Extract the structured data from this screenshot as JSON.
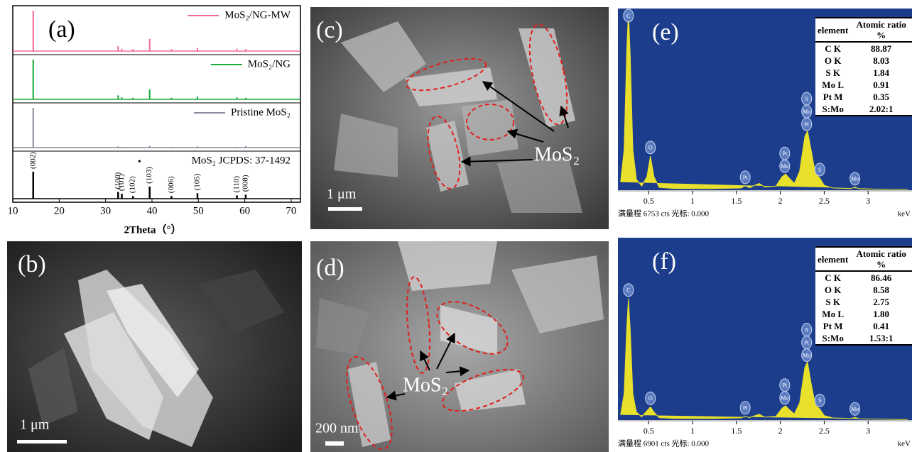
{
  "chart_data": [
    {
      "type": "line",
      "title": "(a)",
      "xlabel": "2Theta（°）",
      "xlim": [
        10,
        72
      ],
      "xticks": [
        10,
        20,
        30,
        40,
        50,
        60,
        70
      ],
      "ylim": [
        0,
        100
      ],
      "x": [
        14.4,
        32.7,
        33.5,
        35.9,
        39.5,
        44.2,
        49.8,
        58.3,
        60.2
      ],
      "series": [
        {
          "name": "MoS₂/NG-MW",
          "color": "#f06aa0",
          "values": [
            100,
            12,
            6,
            5,
            30,
            5,
            8,
            6,
            5
          ]
        },
        {
          "name": "MoS₂/NG",
          "color": "#1aa83a",
          "values": [
            100,
            10,
            5,
            4,
            25,
            4,
            7,
            5,
            4
          ]
        },
        {
          "name": "Pristine MoS₂",
          "color": "#8a8a9a",
          "values": [
            100,
            3,
            2,
            1,
            4,
            2,
            3,
            2,
            4
          ]
        },
        {
          "name": "MoS₂ JCPDS: 37-1492",
          "color": "#000000",
          "values": [
            100,
            25,
            18,
            10,
            45,
            10,
            20,
            12,
            15
          ],
          "labels": [
            "(002)",
            "(100)",
            "(101)",
            "(102)",
            "(103)",
            "(006)",
            "(105)",
            "(110)",
            "(008)"
          ]
        }
      ],
      "annotations": [
        {
          "text": "•",
          "x": 37.3
        }
      ]
    },
    {
      "type": "area",
      "title": "(e)",
      "xlabel": "keV",
      "footer": "满量程 6753 cts 光标: 0.000",
      "xlim": [
        0.15,
        3.5
      ],
      "ylim": [
        0,
        6753
      ],
      "xticks": [
        0.5,
        1,
        1.5,
        2,
        2.5,
        3
      ],
      "color": "#e8e02a",
      "background": "#1c3d8c",
      "x": [
        0.18,
        0.22,
        0.25,
        0.27,
        0.29,
        0.32,
        0.36,
        0.42,
        0.48,
        0.52,
        0.56,
        0.62,
        0.8,
        1.2,
        1.55,
        1.6,
        1.65,
        1.72,
        1.76,
        1.82,
        1.95,
        2.02,
        2.06,
        2.1,
        2.16,
        2.22,
        2.28,
        2.31,
        2.35,
        2.4,
        2.45,
        2.5,
        2.6,
        2.8,
        2.85,
        2.9,
        3.2,
        3.45
      ],
      "values": [
        300,
        1500,
        5200,
        6700,
        5000,
        1500,
        400,
        150,
        500,
        1270,
        500,
        100,
        60,
        60,
        80,
        160,
        90,
        200,
        250,
        120,
        150,
        500,
        600,
        450,
        250,
        700,
        2000,
        2200,
        1500,
        600,
        450,
        180,
        80,
        60,
        110,
        50,
        30,
        20
      ],
      "peak_labels": [
        {
          "label": "C",
          "x": 0.27
        },
        {
          "label": "O",
          "x": 0.52
        },
        {
          "label": "Pt",
          "x": 1.6
        },
        {
          "label": "Mo",
          "x": 2.05
        },
        {
          "label": "Pt",
          "x": 2.05
        },
        {
          "label": "Pt",
          "x": 2.3
        },
        {
          "label": "Mo",
          "x": 2.3
        },
        {
          "label": "S",
          "x": 2.3
        },
        {
          "label": "S",
          "x": 2.45
        },
        {
          "label": "Mo",
          "x": 2.85
        }
      ],
      "table": {
        "header": [
          "element",
          "Atomic ratio %"
        ],
        "rows": [
          [
            "C K",
            "88.87"
          ],
          [
            "O K",
            "8.03"
          ],
          [
            "S K",
            "1.84"
          ],
          [
            "Mo L",
            "0.91"
          ],
          [
            "Pt M",
            "0.35"
          ],
          [
            "S:Mo",
            "2.02:1"
          ]
        ]
      }
    },
    {
      "type": "area",
      "title": "(f)",
      "xlabel": "keV",
      "footer": "满量程 6901 cts 光标: 0.000",
      "xlim": [
        0.15,
        3.5
      ],
      "ylim": [
        0,
        6901
      ],
      "xticks": [
        0.5,
        1,
        1.5,
        2,
        2.5,
        3
      ],
      "color": "#e8e02a",
      "background": "#1c3d8c",
      "x": [
        0.18,
        0.22,
        0.25,
        0.27,
        0.29,
        0.32,
        0.36,
        0.42,
        0.48,
        0.52,
        0.56,
        0.62,
        0.8,
        1.2,
        1.55,
        1.6,
        1.65,
        1.72,
        1.76,
        1.82,
        1.95,
        2.02,
        2.06,
        2.1,
        2.16,
        2.22,
        2.28,
        2.31,
        2.35,
        2.4,
        2.45,
        2.5,
        2.6,
        2.8,
        2.85,
        2.9,
        3.2,
        3.45
      ],
      "values": [
        200,
        1000,
        3500,
        4600,
        3400,
        1000,
        300,
        120,
        350,
        500,
        300,
        90,
        60,
        60,
        80,
        140,
        90,
        180,
        220,
        110,
        140,
        450,
        540,
        400,
        230,
        650,
        2000,
        2200,
        1400,
        550,
        420,
        170,
        80,
        60,
        100,
        50,
        30,
        20
      ],
      "peak_labels": [
        {
          "label": "C",
          "x": 0.27
        },
        {
          "label": "O",
          "x": 0.52
        },
        {
          "label": "Pt",
          "x": 1.6
        },
        {
          "label": "Mo",
          "x": 2.05
        },
        {
          "label": "Pt",
          "x": 2.05
        },
        {
          "label": "Mo",
          "x": 2.3
        },
        {
          "label": "Pt",
          "x": 2.3
        },
        {
          "label": "S",
          "x": 2.3
        },
        {
          "label": "S",
          "x": 2.45
        },
        {
          "label": "Mo",
          "x": 2.85
        }
      ],
      "table": {
        "header": [
          "element",
          "Atomic ratio %"
        ],
        "rows": [
          [
            "C K",
            "86.46"
          ],
          [
            "O K",
            "8.58"
          ],
          [
            "S K",
            "2.75"
          ],
          [
            "Mo L",
            "1.80"
          ],
          [
            "Pt M",
            "0.41"
          ],
          [
            "S:Mo",
            "1.53:1"
          ]
        ]
      }
    }
  ],
  "panels": [
    {
      "label": "(b)",
      "scale": "1 μm"
    },
    {
      "label": "(c)",
      "scale": "1 μm",
      "annotation": "MoS₂"
    },
    {
      "label": "(d)",
      "scale": "200 nm",
      "annotation": "MoS₂"
    }
  ]
}
